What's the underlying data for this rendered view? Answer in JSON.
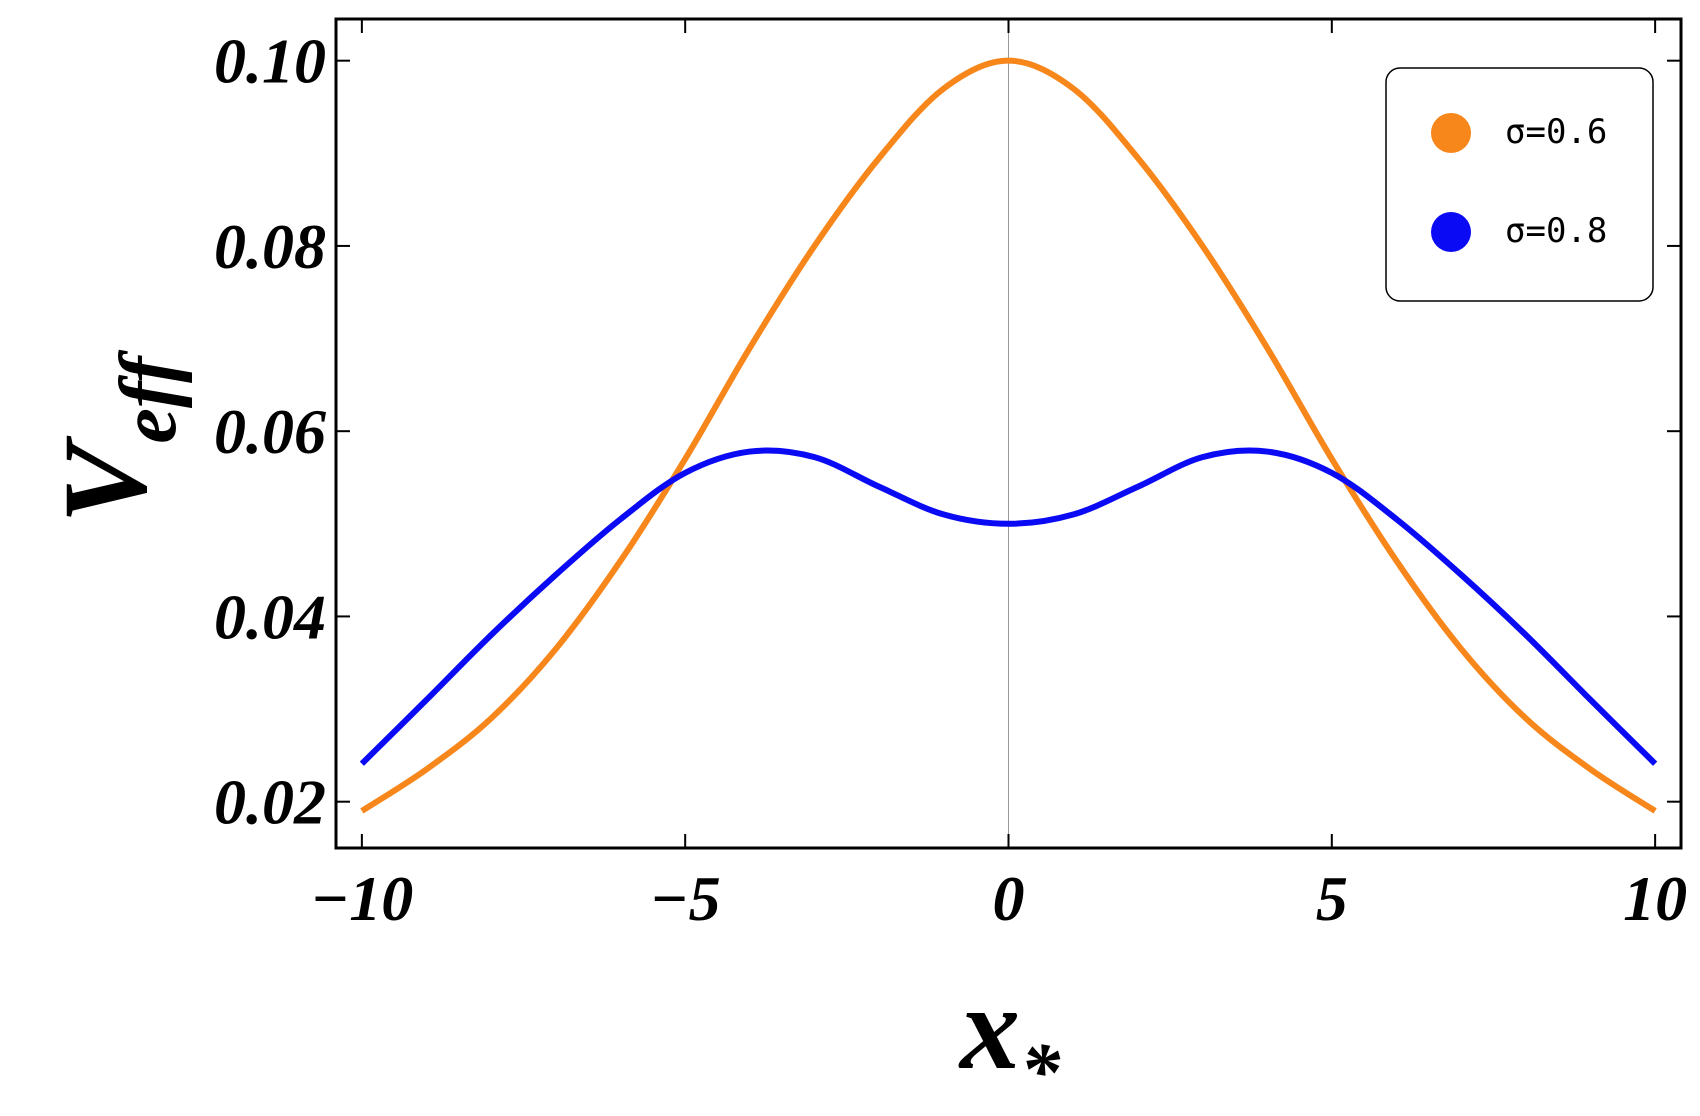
{
  "chart_data": {
    "type": "line",
    "xlabel": "x",
    "xlabel_sub": "*",
    "ylabel": "V",
    "ylabel_sub": "eff",
    "x": [
      -10,
      -9,
      -8,
      -7,
      -6,
      -5,
      -4,
      -3,
      -2,
      -1,
      0,
      1,
      2,
      3,
      4,
      5,
      6,
      7,
      8,
      9,
      10
    ],
    "series": [
      {
        "name": "σ=0.6",
        "color": "#f7861b",
        "values": [
          0.019,
          0.0235,
          0.029,
          0.0365,
          0.046,
          0.057,
          0.069,
          0.08,
          0.0895,
          0.097,
          0.1,
          0.097,
          0.0895,
          0.08,
          0.069,
          0.057,
          0.046,
          0.0365,
          0.029,
          0.0235,
          0.019
        ]
      },
      {
        "name": "σ=0.8",
        "color": "#0a0af5",
        "values": [
          0.0241,
          0.031,
          0.038,
          0.0445,
          0.0505,
          0.0555,
          0.0578,
          0.0572,
          0.054,
          0.051,
          0.05,
          0.051,
          0.054,
          0.0572,
          0.0578,
          0.0555,
          0.0505,
          0.0445,
          0.038,
          0.031,
          0.0241
        ]
      }
    ],
    "xlim": [
      -10.4,
      10.4
    ],
    "ylim": [
      0.015,
      0.1045
    ],
    "xticks": [
      {
        "value": -10,
        "label": "−10"
      },
      {
        "value": -5,
        "label": "−5"
      },
      0,
      5,
      10
    ],
    "yticks": [
      {
        "value": 0.02,
        "label": "0.02"
      },
      {
        "value": 0.04,
        "label": "0.04"
      },
      {
        "value": 0.06,
        "label": "0.06"
      },
      {
        "value": 0.08,
        "label": "0.08"
      },
      {
        "value": 0.1,
        "label": "0.10"
      }
    ],
    "legend": "top-right"
  }
}
